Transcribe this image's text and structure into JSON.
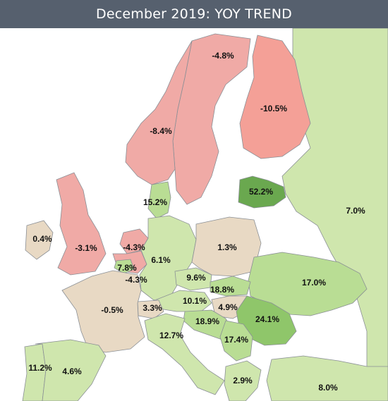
{
  "title": "December 2019: YOY TREND",
  "colors": {
    "header_bg": "#56606e",
    "strong_negative": "#f4a097",
    "negative": "#f0aaa6",
    "slight_negative": "#e8c9b6",
    "neutral": "#e8d9c4",
    "slight_positive": "#cfe6ad",
    "positive": "#b9dd94",
    "strong_positive": "#8fc66a",
    "very_strong_positive": "#6aa84f",
    "no_data": "#ffffff"
  },
  "countries": [
    {
      "id": "norway",
      "value": "-8.4%",
      "color_key": "negative"
    },
    {
      "id": "sweden",
      "value": "-4.8%",
      "color_key": "negative"
    },
    {
      "id": "finland",
      "value": "-10.5%",
      "color_key": "strong_negative"
    },
    {
      "id": "latvia",
      "value": "52.2%",
      "color_key": "very_strong_positive"
    },
    {
      "id": "russia",
      "value": "7.0%",
      "color_key": "slight_positive"
    },
    {
      "id": "denmark",
      "value": "15.2%",
      "color_key": "positive"
    },
    {
      "id": "ireland",
      "value": "0.4%",
      "color_key": "neutral"
    },
    {
      "id": "uk",
      "value": "-3.1%",
      "color_key": "negative"
    },
    {
      "id": "netherlands",
      "value": "-4.3%",
      "color_key": "negative"
    },
    {
      "id": "luxembourg",
      "value": "7.8%",
      "color_key": "positive"
    },
    {
      "id": "belgium",
      "value": "-4.3%",
      "color_key": "negative"
    },
    {
      "id": "germany",
      "value": "6.1%",
      "color_key": "slight_positive"
    },
    {
      "id": "poland",
      "value": "1.3%",
      "color_key": "neutral"
    },
    {
      "id": "czechia",
      "value": "9.6%",
      "color_key": "slight_positive"
    },
    {
      "id": "slovakia",
      "value": "18.8%",
      "color_key": "positive"
    },
    {
      "id": "ukraine",
      "value": "17.0%",
      "color_key": "positive"
    },
    {
      "id": "austria",
      "value": "10.1%",
      "color_key": "slight_positive"
    },
    {
      "id": "hungary",
      "value": "4.9%",
      "color_key": "neutral"
    },
    {
      "id": "france",
      "value": "-0.5%",
      "color_key": "neutral"
    },
    {
      "id": "switzerland",
      "value": "3.3%",
      "color_key": "neutral"
    },
    {
      "id": "slovenia_croatia",
      "value": "18.9%",
      "color_key": "positive"
    },
    {
      "id": "romania",
      "value": "24.1%",
      "color_key": "strong_positive"
    },
    {
      "id": "italy",
      "value": "12.7%",
      "color_key": "slight_positive"
    },
    {
      "id": "serbia",
      "value": "17.4%",
      "color_key": "positive"
    },
    {
      "id": "portugal",
      "value": "11.2%",
      "color_key": "slight_positive"
    },
    {
      "id": "spain",
      "value": "4.6%",
      "color_key": "slight_positive"
    },
    {
      "id": "greece",
      "value": "2.9%",
      "color_key": "slight_positive"
    },
    {
      "id": "turkey",
      "value": "8.0%",
      "color_key": "slight_positive"
    }
  ]
}
